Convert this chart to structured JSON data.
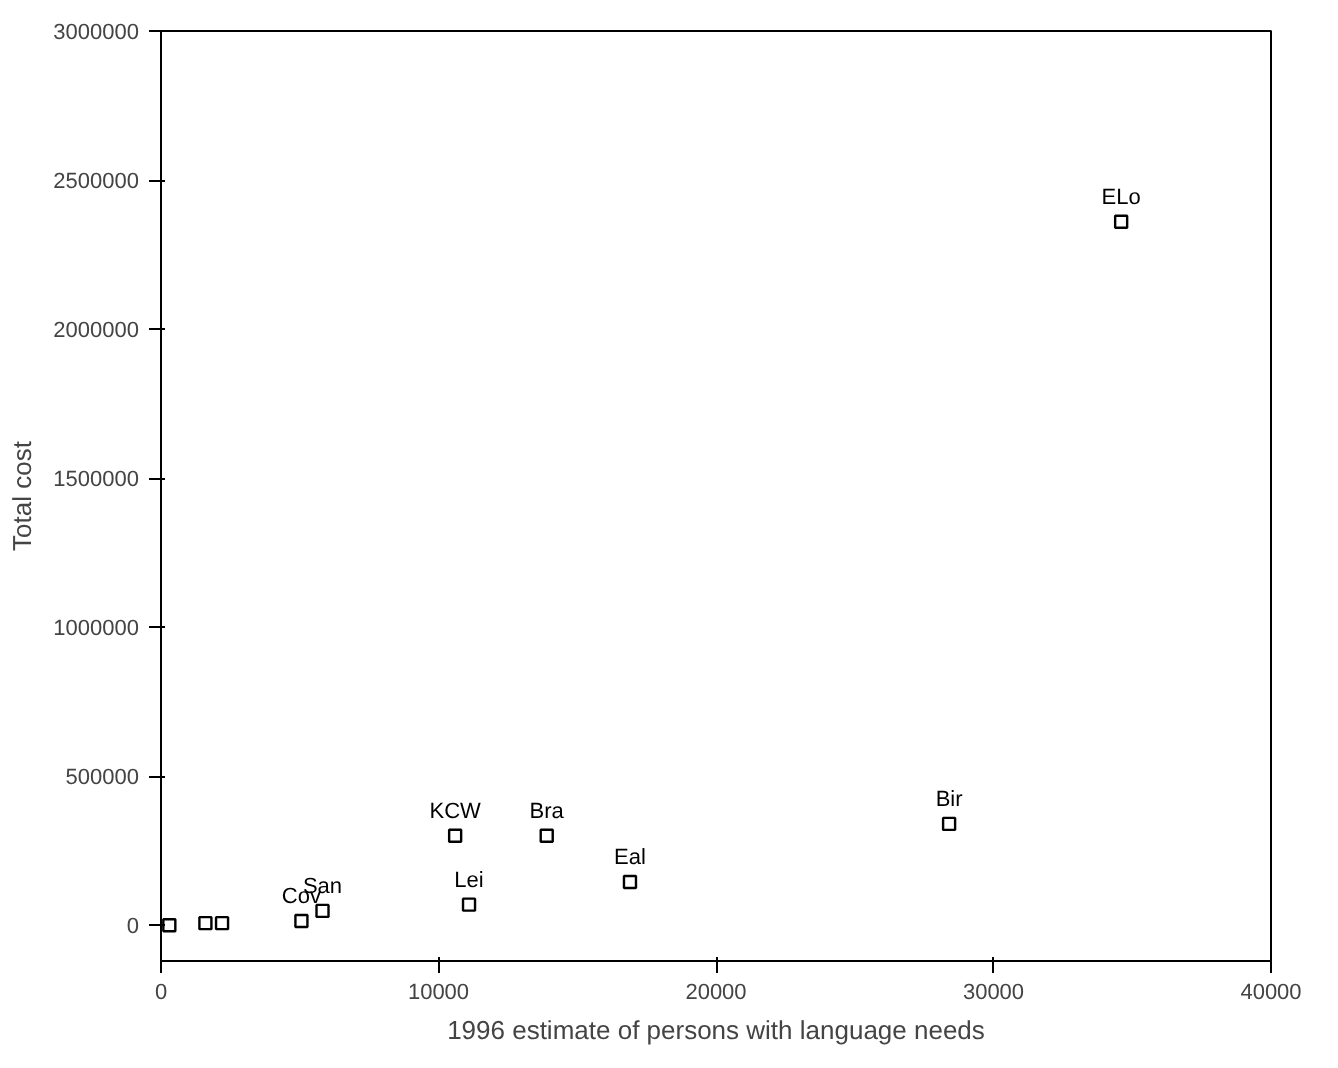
{
  "chart_data": {
    "type": "scatter",
    "xlabel": "1996 estimate of persons with language needs",
    "ylabel": "Total cost",
    "x": [
      34600,
      28400,
      16900,
      13900,
      10600,
      11100,
      5820,
      5060,
      2200,
      1600,
      300
    ],
    "series": [
      {
        "color": "#000000",
        "values": [
          2360000,
          340000,
          145000,
          300000,
          300000,
          69000,
          48000,
          14000,
          7000,
          7000,
          0
        ]
      }
    ],
    "marker": "square",
    "grid": false,
    "xlim": [
      0,
      40000
    ],
    "xticks": [
      0,
      10000,
      20000,
      30000,
      40000
    ],
    "ylim": [
      -120000,
      3000000
    ],
    "yticks": [
      0,
      500000,
      1000000,
      1500000,
      2000000,
      2500000,
      3000000
    ],
    "annotations": [
      {
        "text": "ELo",
        "x": 34600,
        "y": 2360000
      },
      {
        "text": "Bir",
        "x": 28400,
        "y": 340000
      },
      {
        "text": "Eal",
        "x": 16900,
        "y": 145000
      },
      {
        "text": "Bra",
        "x": 13900,
        "y": 300000
      },
      {
        "text": "KCW",
        "x": 10600,
        "y": 300000
      },
      {
        "text": "Lei",
        "x": 11100,
        "y": 69000
      },
      {
        "text": "San",
        "x": 5820,
        "y": 48000
      },
      {
        "text": "Cov",
        "x": 5060,
        "y": 14000
      }
    ]
  }
}
